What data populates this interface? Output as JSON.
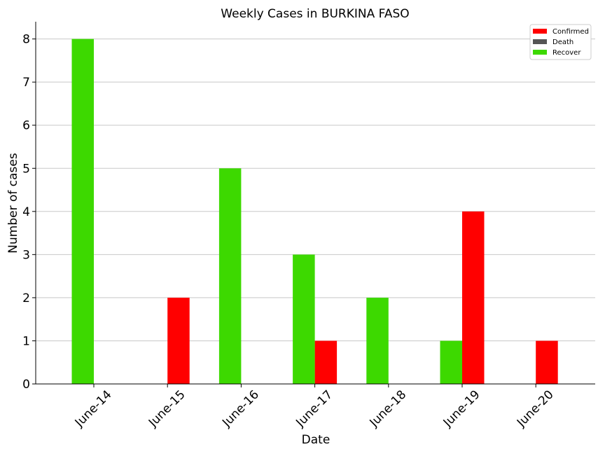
{
  "chart_data": {
    "type": "bar",
    "title": "Weekly Cases in BURKINA FASO",
    "xlabel": "Date",
    "ylabel": "Number of cases",
    "categories": [
      "June-14",
      "June-15",
      "June-16",
      "June-17",
      "June-18",
      "June-19",
      "June-20"
    ],
    "series": [
      {
        "name": "Confirmed",
        "color": "#ff0000",
        "values": [
          0,
          2,
          0,
          1,
          0,
          4,
          1
        ]
      },
      {
        "name": "Death",
        "color": "#555555",
        "values": [
          0,
          0,
          0,
          0,
          0,
          0,
          0
        ]
      },
      {
        "name": "Recover",
        "color": "#3dd900",
        "values": [
          8,
          0,
          5,
          3,
          2,
          1,
          0
        ]
      }
    ],
    "ylim": [
      0,
      8.4
    ],
    "yticks": [
      0,
      1,
      2,
      3,
      4,
      5,
      6,
      7,
      8
    ],
    "grid": "horizontal",
    "legend": "top-right"
  }
}
